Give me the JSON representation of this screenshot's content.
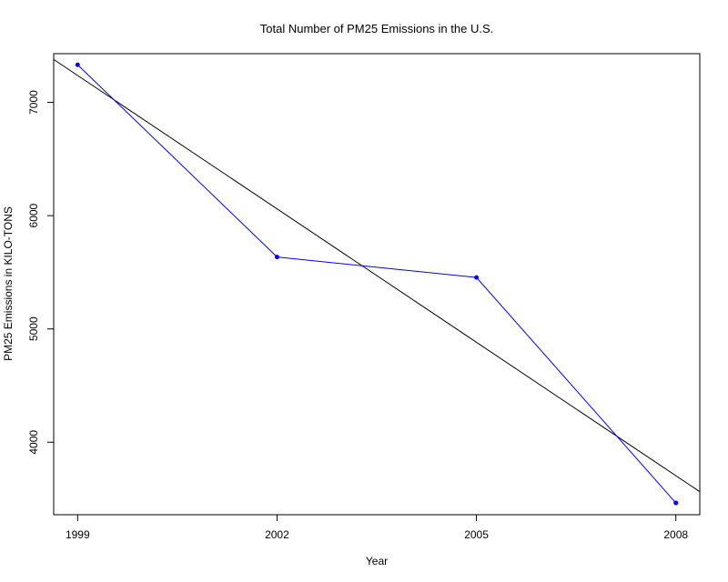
{
  "chart_data": {
    "type": "line",
    "title": "Total Number of PM25 Emissions in the U.S.",
    "xlabel": "Year",
    "ylabel": "PM25 Emissions in KILO-TONS",
    "xlim": [
      1998.64,
      2008.36
    ],
    "ylim": [
      3360,
      7430
    ],
    "xticks": [
      1999,
      2002,
      2005,
      2008
    ],
    "yticks": [
      4000,
      5000,
      6000,
      7000
    ],
    "grid": false,
    "colors": {
      "series": "#0000ff",
      "trend": "#000000"
    },
    "series": [
      {
        "x": [
          1999,
          2002,
          2005,
          2008
        ],
        "values": [
          7332,
          5635,
          5454,
          3464
        ]
      }
    ],
    "trend_line": {
      "x": [
        1998.64,
        2008.36
      ],
      "values": [
        7379,
        3563
      ]
    }
  }
}
